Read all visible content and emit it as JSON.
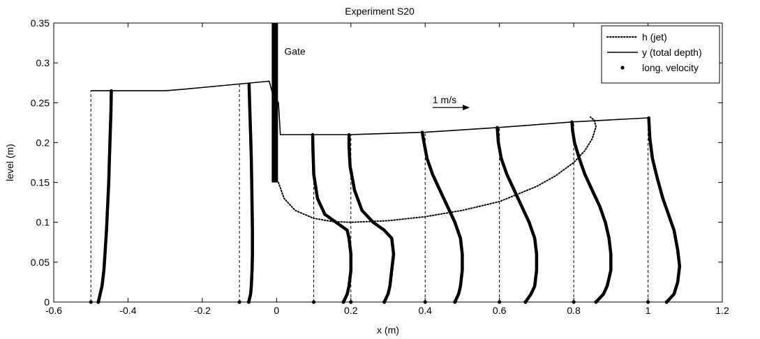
{
  "chart_data": {
    "type": "line",
    "title": "Experiment S20",
    "xlabel": "x (m)",
    "ylabel": "level (m)",
    "xlim": [
      -0.6,
      1.2
    ],
    "ylim": [
      0,
      0.35
    ],
    "x_ticks": [
      -0.6,
      -0.4,
      -0.2,
      0,
      0.2,
      0.4,
      0.6,
      0.8,
      1,
      1.2
    ],
    "x_tick_labels": [
      "-0.6",
      "-0.4",
      "-0.2",
      "0",
      "0.2",
      "0.4",
      "0.6",
      "0.8",
      "1",
      "1.2"
    ],
    "y_ticks": [
      0,
      0.05,
      0.1,
      0.15,
      0.2,
      0.25,
      0.3,
      0.35
    ],
    "y_tick_labels": [
      "0",
      "0.05",
      "0.1",
      "0.15",
      "0.2",
      "0.25",
      "0.3",
      "0.35"
    ],
    "grid": false,
    "legend_position": "top-right",
    "legend": [
      {
        "label": "h (jet)",
        "style": "dotted"
      },
      {
        "label": "y (total depth)",
        "style": "solid"
      },
      {
        "label": "long. velocity",
        "style": "marker"
      }
    ],
    "annotations": {
      "gate_label": "Gate",
      "arrow_label": "1 m/s",
      "arrow_start": [
        0.42,
        0.244
      ],
      "arrow_end": [
        0.52,
        0.244
      ]
    },
    "gate": {
      "x": 0,
      "y_bottom": 0.15,
      "y_top": 0.35
    },
    "series": [
      {
        "name": "h (jet)",
        "style": "dotted",
        "x": [
          0.005,
          0.02,
          0.05,
          0.1,
          0.15,
          0.2,
          0.3,
          0.4,
          0.5,
          0.6,
          0.7,
          0.75,
          0.8,
          0.83,
          0.85,
          0.86,
          0.855,
          0.845
        ],
        "y": [
          0.15,
          0.13,
          0.115,
          0.105,
          0.101,
          0.1,
          0.102,
          0.107,
          0.115,
          0.126,
          0.145,
          0.158,
          0.175,
          0.19,
          0.205,
          0.22,
          0.228,
          0.232
        ]
      },
      {
        "name": "y (total depth)",
        "style": "solid",
        "x": [
          -0.5,
          -0.3,
          -0.25,
          -0.02,
          -0.01,
          0.005,
          0.01,
          0.1,
          0.2,
          0.4,
          0.6,
          0.8,
          1.0
        ],
        "y": [
          0.265,
          0.265,
          0.267,
          0.277,
          0.26,
          0.25,
          0.21,
          0.21,
          0.21,
          0.213,
          0.219,
          0.226,
          0.231
        ]
      }
    ],
    "velocity_profiles": [
      {
        "x0": -0.5,
        "y_top": 0.265,
        "u": [
          0.02,
          0.025,
          0.03,
          0.035,
          0.038,
          0.042,
          0.045,
          0.048,
          0.05,
          0.052,
          0.054,
          0.055
        ],
        "y": [
          0,
          0.01,
          0.02,
          0.04,
          0.06,
          0.09,
          0.12,
          0.15,
          0.18,
          0.21,
          0.24,
          0.265
        ]
      },
      {
        "x0": -0.1,
        "y_top": 0.273,
        "u": [
          0.025,
          0.03,
          0.032,
          0.034,
          0.035,
          0.035,
          0.034,
          0.033,
          0.032,
          0.03,
          0.028,
          0.026
        ],
        "y": [
          0,
          0.01,
          0.02,
          0.04,
          0.06,
          0.09,
          0.12,
          0.15,
          0.18,
          0.21,
          0.24,
          0.273
        ]
      },
      {
        "x0": 0.1,
        "y_top": 0.21,
        "u": [
          0.08,
          0.09,
          0.095,
          0.1,
          0.1,
          0.095,
          0.09,
          0.06,
          0.03,
          0.01,
          0.0,
          -0.002,
          -0.003
        ],
        "y": [
          0,
          0.01,
          0.02,
          0.04,
          0.06,
          0.08,
          0.09,
          0.1,
          0.11,
          0.13,
          0.16,
          0.19,
          0.21
        ]
      },
      {
        "x0": 0.2,
        "y_top": 0.21,
        "u": [
          0.09,
          0.1,
          0.105,
          0.11,
          0.115,
          0.11,
          0.09,
          0.06,
          0.03,
          0.01,
          -0.002,
          -0.005,
          -0.005
        ],
        "y": [
          0,
          0.01,
          0.02,
          0.04,
          0.06,
          0.08,
          0.09,
          0.1,
          0.115,
          0.14,
          0.17,
          0.195,
          0.21
        ]
      },
      {
        "x0": 0.4,
        "y_top": 0.213,
        "u": [
          0.08,
          0.09,
          0.095,
          0.1,
          0.1,
          0.095,
          0.08,
          0.06,
          0.04,
          0.02,
          0.005,
          -0.003,
          -0.008
        ],
        "y": [
          0,
          0.01,
          0.02,
          0.04,
          0.06,
          0.08,
          0.1,
          0.12,
          0.14,
          0.16,
          0.18,
          0.2,
          0.213
        ]
      },
      {
        "x0": 0.6,
        "y_top": 0.219,
        "u": [
          0.07,
          0.085,
          0.095,
          0.1,
          0.1,
          0.095,
          0.08,
          0.06,
          0.04,
          0.02,
          0.005,
          -0.003,
          -0.006
        ],
        "y": [
          0,
          0.01,
          0.02,
          0.04,
          0.06,
          0.08,
          0.1,
          0.12,
          0.14,
          0.16,
          0.18,
          0.2,
          0.219
        ]
      },
      {
        "x0": 0.8,
        "y_top": 0.226,
        "u": [
          0.06,
          0.08,
          0.09,
          0.1,
          0.1,
          0.095,
          0.085,
          0.07,
          0.05,
          0.03,
          0.015,
          0.002,
          -0.003,
          -0.005
        ],
        "y": [
          0,
          0.01,
          0.02,
          0.04,
          0.06,
          0.08,
          0.1,
          0.12,
          0.14,
          0.16,
          0.18,
          0.2,
          0.215,
          0.226
        ]
      },
      {
        "x0": 1.0,
        "y_top": 0.231,
        "u": [
          0.05,
          0.07,
          0.08,
          0.085,
          0.08,
          0.07,
          0.055,
          0.04,
          0.025,
          0.012,
          0.005,
          0.002
        ],
        "y": [
          0,
          0.01,
          0.025,
          0.045,
          0.065,
          0.09,
          0.11,
          0.13,
          0.155,
          0.18,
          0.205,
          0.231
        ]
      }
    ]
  }
}
